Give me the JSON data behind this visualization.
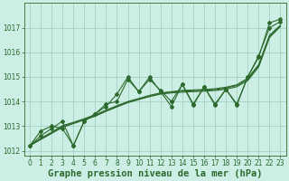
{
  "xlabel": "Graphe pression niveau de la mer (hPa)",
  "x": [
    0,
    1,
    2,
    3,
    4,
    5,
    6,
    7,
    8,
    9,
    10,
    11,
    12,
    13,
    14,
    15,
    16,
    17,
    18,
    19,
    20,
    21,
    22,
    23
  ],
  "line_zigzag": [
    1012.2,
    1012.8,
    1013.0,
    1012.9,
    1012.2,
    1013.2,
    1013.5,
    1013.8,
    1014.3,
    1015.0,
    1014.4,
    1015.0,
    1014.4,
    1013.8,
    1014.7,
    1013.85,
    1014.6,
    1013.85,
    1014.5,
    1013.85,
    1015.0,
    1015.8,
    1017.2,
    1017.35
  ],
  "line_trend1": [
    1012.2,
    1012.45,
    1012.7,
    1012.95,
    1013.1,
    1013.25,
    1013.4,
    1013.6,
    1013.78,
    1013.95,
    1014.08,
    1014.2,
    1014.3,
    1014.35,
    1014.38,
    1014.4,
    1014.42,
    1014.45,
    1014.5,
    1014.6,
    1014.85,
    1015.4,
    1016.6,
    1017.05
  ],
  "line_trend2": [
    1012.2,
    1012.48,
    1012.72,
    1012.98,
    1013.12,
    1013.28,
    1013.43,
    1013.62,
    1013.8,
    1013.98,
    1014.1,
    1014.22,
    1014.33,
    1014.38,
    1014.42,
    1014.44,
    1014.46,
    1014.48,
    1014.55,
    1014.65,
    1014.9,
    1015.45,
    1016.65,
    1017.08
  ],
  "line_trend3": [
    1012.2,
    1012.5,
    1012.75,
    1013.02,
    1013.15,
    1013.3,
    1013.46,
    1013.65,
    1013.83,
    1014.0,
    1014.12,
    1014.25,
    1014.35,
    1014.4,
    1014.45,
    1014.47,
    1014.49,
    1014.52,
    1014.58,
    1014.68,
    1014.95,
    1015.5,
    1016.7,
    1017.1
  ],
  "line_wavy": [
    1012.2,
    1012.6,
    1012.9,
    1013.2,
    1012.2,
    1013.2,
    1013.5,
    1013.9,
    1014.0,
    1014.9,
    1014.4,
    1014.9,
    1014.45,
    1014.0,
    1014.7,
    1013.9,
    1014.6,
    1013.9,
    1014.5,
    1013.9,
    1015.0,
    1015.85,
    1017.0,
    1017.25
  ],
  "bg_color": "#cceee4",
  "line_color": "#2d6a2d",
  "grid_color": "#99ccbb",
  "ylim": [
    1011.8,
    1018.0
  ],
  "yticks": [
    1012,
    1013,
    1014,
    1015,
    1016,
    1017
  ],
  "xticks": [
    0,
    1,
    2,
    3,
    4,
    5,
    6,
    7,
    8,
    9,
    10,
    11,
    12,
    13,
    14,
    15,
    16,
    17,
    18,
    19,
    20,
    21,
    22,
    23
  ],
  "tick_fontsize": 5.5,
  "xlabel_fontsize": 7.5
}
